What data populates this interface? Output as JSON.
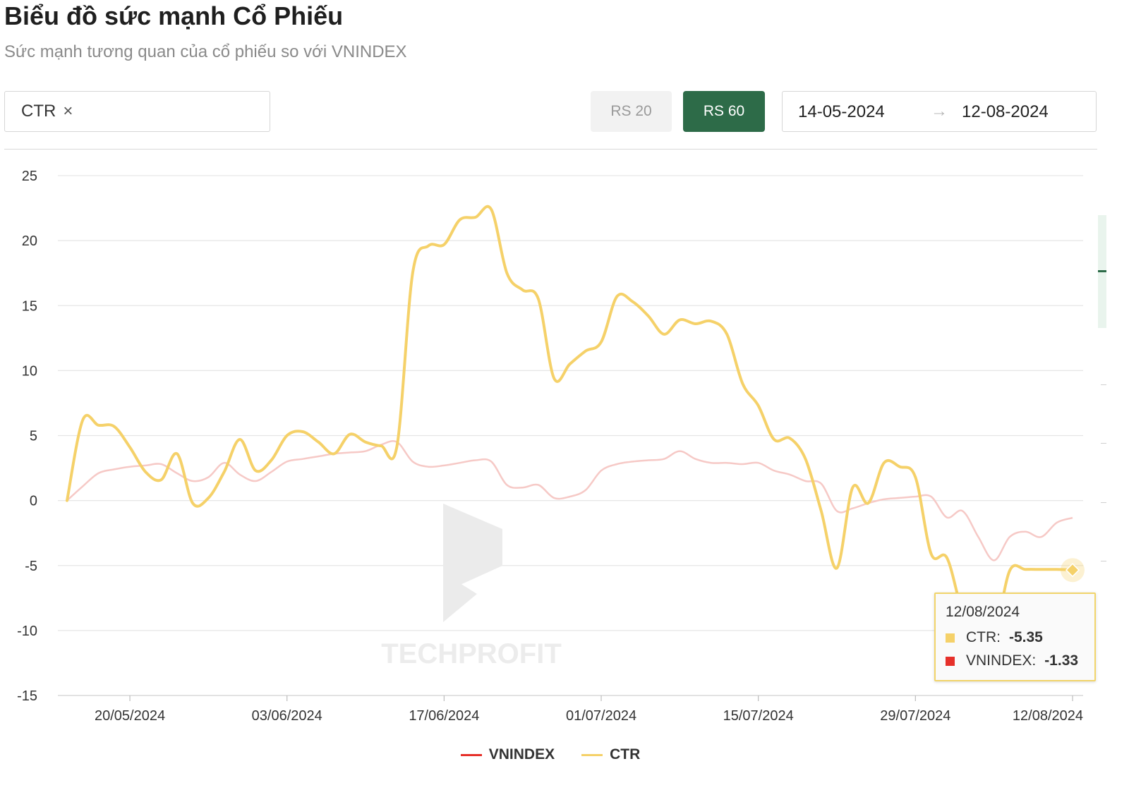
{
  "header": {
    "title": "Biểu đồ sức mạnh Cổ Phiếu",
    "subtitle": "Sức mạnh tương quan của cổ phiếu so với VNINDEX"
  },
  "controls": {
    "ticker": "CTR",
    "ticker_remove": "×",
    "rs20_label": "RS 20",
    "rs60_label": "RS 60",
    "active_rs": "RS 60",
    "date_start": "14-05-2024",
    "date_arrow": "→",
    "date_end": "12-08-2024"
  },
  "watermark": "TECHPROFIT",
  "colors": {
    "ctr": "#f5d169",
    "vnindex": "#e6302a",
    "vnindex_faded": "#f6c9c6",
    "accent_green": "#2d6b48"
  },
  "chart_data": {
    "type": "line",
    "title": "",
    "xlabel": "",
    "ylabel": "",
    "ylim": [
      -15,
      25
    ],
    "yticks": [
      25,
      20,
      15,
      10,
      5,
      0,
      -5,
      -10,
      -15
    ],
    "grid": true,
    "legend_position": "bottom",
    "x_tick_labels": [
      "20/05/2024",
      "03/06/2024",
      "17/06/2024",
      "01/07/2024",
      "15/07/2024",
      "29/07/2024",
      "12/08/2024"
    ],
    "x": [
      "14/05/2024",
      "15/05/2024",
      "16/05/2024",
      "17/05/2024",
      "20/05/2024",
      "21/05/2024",
      "22/05/2024",
      "23/05/2024",
      "24/05/2024",
      "27/05/2024",
      "28/05/2024",
      "29/05/2024",
      "30/05/2024",
      "31/05/2024",
      "03/06/2024",
      "04/06/2024",
      "05/06/2024",
      "06/06/2024",
      "07/06/2024",
      "10/06/2024",
      "11/06/2024",
      "12/06/2024",
      "13/06/2024",
      "14/06/2024",
      "17/06/2024",
      "18/06/2024",
      "19/06/2024",
      "20/06/2024",
      "21/06/2024",
      "24/06/2024",
      "25/06/2024",
      "26/06/2024",
      "27/06/2024",
      "28/06/2024",
      "01/07/2024",
      "02/07/2024",
      "03/07/2024",
      "04/07/2024",
      "05/07/2024",
      "08/07/2024",
      "09/07/2024",
      "10/07/2024",
      "11/07/2024",
      "12/07/2024",
      "15/07/2024",
      "16/07/2024",
      "17/07/2024",
      "18/07/2024",
      "19/07/2024",
      "22/07/2024",
      "23/07/2024",
      "24/07/2024",
      "25/07/2024",
      "26/07/2024",
      "29/07/2024",
      "30/07/2024",
      "31/07/2024",
      "01/08/2024",
      "02/08/2024",
      "05/08/2024",
      "06/08/2024",
      "07/08/2024",
      "08/08/2024",
      "09/08/2024",
      "12/08/2024"
    ],
    "series": [
      {
        "name": "VNINDEX",
        "values": [
          0.0,
          1.1,
          2.1,
          2.4,
          2.6,
          2.7,
          2.8,
          2.1,
          1.5,
          1.8,
          2.9,
          2.0,
          1.5,
          2.2,
          3.0,
          3.2,
          3.4,
          3.6,
          3.7,
          3.8,
          4.3,
          4.5,
          3.0,
          2.6,
          2.7,
          2.9,
          3.1,
          3.0,
          1.2,
          1.0,
          1.2,
          0.2,
          0.3,
          0.8,
          2.3,
          2.8,
          3.0,
          3.1,
          3.2,
          3.8,
          3.2,
          2.9,
          2.9,
          2.8,
          2.9,
          2.3,
          2.0,
          1.5,
          1.3,
          -0.8,
          -0.6,
          -0.2,
          0.1,
          0.2,
          0.3,
          0.3,
          -1.3,
          -0.8,
          -2.8,
          -4.6,
          -2.8,
          -2.4,
          -2.8,
          -1.7,
          -1.33
        ]
      },
      {
        "name": "CTR",
        "values": [
          0.0,
          6.2,
          5.8,
          5.7,
          4.1,
          2.2,
          1.6,
          3.6,
          -0.2,
          0.2,
          2.2,
          4.7,
          2.3,
          3.1,
          5.0,
          5.3,
          4.5,
          3.6,
          5.1,
          4.5,
          4.2,
          4.2,
          17.5,
          19.6,
          19.7,
          21.6,
          21.8,
          22.4,
          17.5,
          16.2,
          15.5,
          9.4,
          10.5,
          11.5,
          12.2,
          15.7,
          15.3,
          14.2,
          12.8,
          13.9,
          13.6,
          13.8,
          12.8,
          9.0,
          7.3,
          4.7,
          4.8,
          3.2,
          -0.8,
          -5.2,
          1.0,
          -0.2,
          2.9,
          2.6,
          1.8,
          -4.1,
          -4.4,
          -8.6,
          -10.8,
          -10.5,
          -5.4,
          -5.3,
          -5.3,
          -5.3,
          -5.35
        ]
      }
    ]
  },
  "tooltip": {
    "date": "12/08/2024",
    "rows": [
      {
        "label": "CTR:",
        "value": "-5.35"
      },
      {
        "label": "VNINDEX:",
        "value": "-1.33"
      }
    ]
  }
}
